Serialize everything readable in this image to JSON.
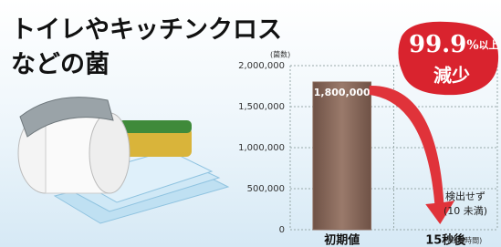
{
  "chart_data": {
    "type": "bar",
    "title": [
      "トイレやキッチンクロス",
      "などの菌"
    ],
    "y_unit": "(菌数)",
    "x_unit": "(経過時間)",
    "categories": [
      "初期値",
      "15秒後"
    ],
    "values": [
      1800000,
      0
    ],
    "value_labels": [
      "1,800,000",
      null
    ],
    "color": "#8a6a5c",
    "ylim": [
      0,
      2000000
    ],
    "yticks": [
      0,
      {
        "value": 500000,
        "label": "500,000"
      },
      {
        "value": 1000000,
        "label": "1,000,000"
      },
      {
        "value": 1500000,
        "label": "1,500,000"
      },
      {
        "value": 2000000,
        "label": "2,000,000"
      }
    ],
    "grid": true,
    "badge": {
      "number": "99.9",
      "percent": "%",
      "qualifier": "以上",
      "text": "減少"
    },
    "annotation": [
      "検出せず",
      "(10 未満)"
    ]
  }
}
